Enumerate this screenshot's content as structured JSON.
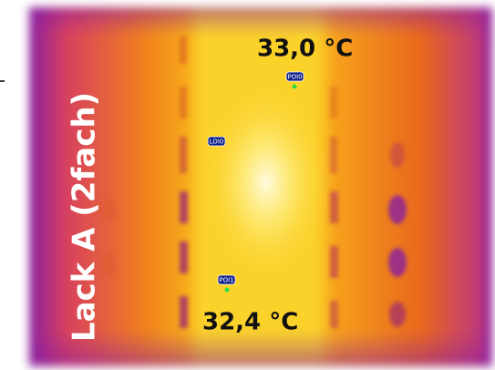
{
  "image": {
    "side_label": "Lack A (2fach)",
    "markers": [
      {
        "label": "POI0",
        "temperature": "33,0 °C"
      },
      {
        "label": "POI1",
        "temperature": "32,4 °C"
      }
    ],
    "line_marker": {
      "label": "LOI0"
    }
  }
}
